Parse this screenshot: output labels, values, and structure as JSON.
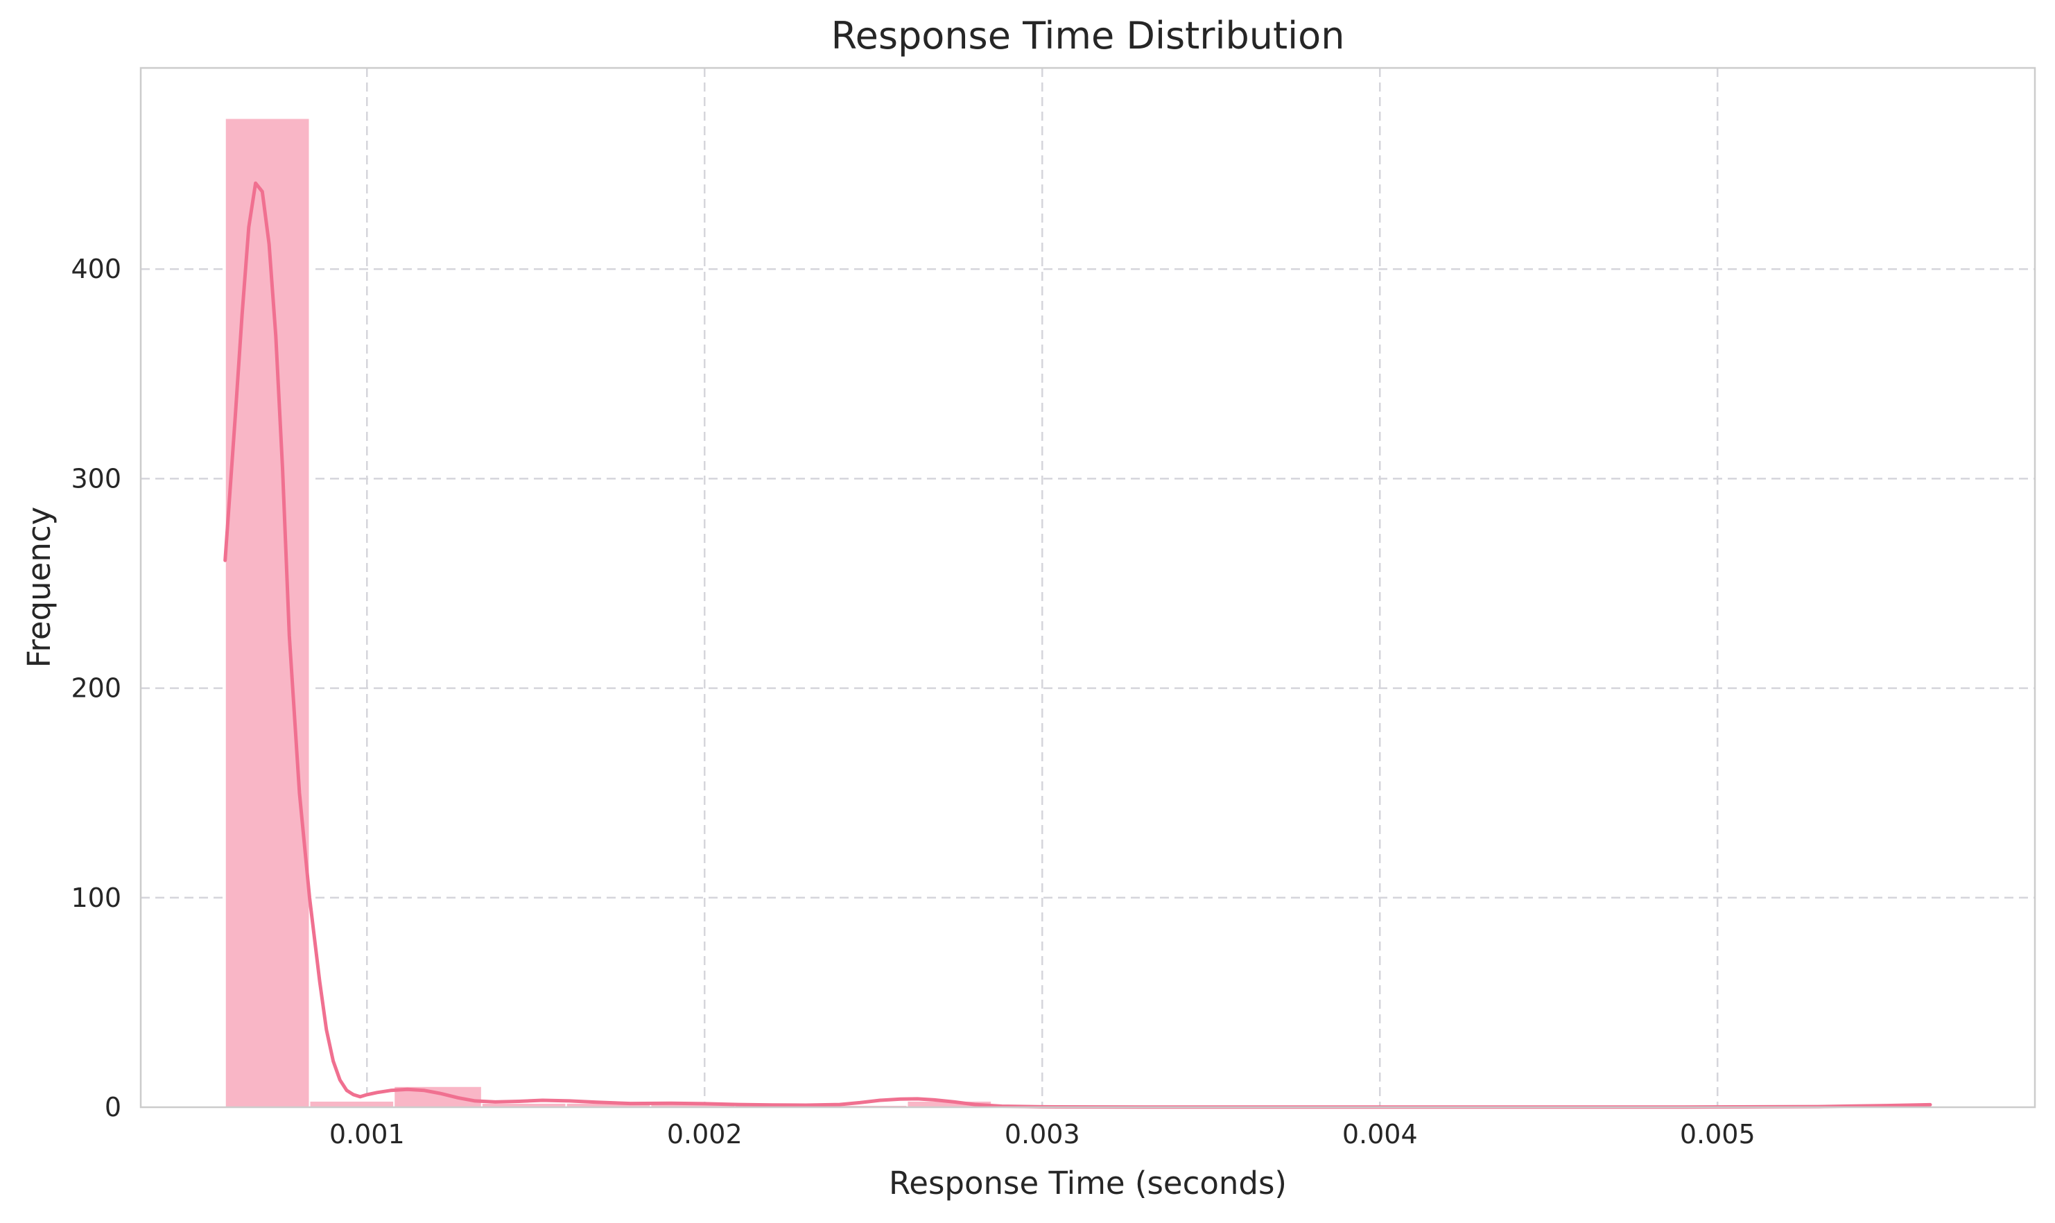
{
  "chart_data": {
    "type": "bar",
    "title": "Response Time Distribution",
    "xlabel": "Response Time (seconds)",
    "ylabel": "Frequency",
    "xlim": [
      0.00033,
      0.00594
    ],
    "ylim": [
      0,
      496
    ],
    "xticks": [
      0.001,
      0.002,
      0.003,
      0.004,
      0.005
    ],
    "xtick_labels": [
      "0.001",
      "0.002",
      "0.003",
      "0.004",
      "0.005"
    ],
    "yticks": [
      0,
      100,
      200,
      300,
      400
    ],
    "ytick_labels": [
      "0",
      "100",
      "200",
      "300",
      "400"
    ],
    "grid": true,
    "colors": {
      "bars": "#f9b6c6",
      "kde": "#f07090",
      "grid": "#d5d5db",
      "frame": "#cccccc"
    },
    "bins": [
      {
        "x0": 0.00058,
        "x1": 0.00083,
        "count": 472
      },
      {
        "x0": 0.00083,
        "x1": 0.00108,
        "count": 3
      },
      {
        "x0": 0.00108,
        "x1": 0.00134,
        "count": 10
      },
      {
        "x0": 0.00134,
        "x1": 0.00159,
        "count": 2
      },
      {
        "x0": 0.00159,
        "x1": 0.00184,
        "count": 2
      },
      {
        "x0": 0.00184,
        "x1": 0.00209,
        "count": 2
      },
      {
        "x0": 0.00209,
        "x1": 0.00235,
        "count": 1
      },
      {
        "x0": 0.00235,
        "x1": 0.0026,
        "count": 1
      },
      {
        "x0": 0.0026,
        "x1": 0.00285,
        "count": 3
      },
      {
        "x0": 0.00285,
        "x1": 0.0031,
        "count": 0
      },
      {
        "x0": 0.0031,
        "x1": 0.00336,
        "count": 0
      },
      {
        "x0": 0.00336,
        "x1": 0.00361,
        "count": 0
      },
      {
        "x0": 0.00361,
        "x1": 0.00386,
        "count": 0
      },
      {
        "x0": 0.00386,
        "x1": 0.00411,
        "count": 0
      },
      {
        "x0": 0.00411,
        "x1": 0.00437,
        "count": 0
      },
      {
        "x0": 0.00437,
        "x1": 0.00462,
        "count": 0
      },
      {
        "x0": 0.00462,
        "x1": 0.00487,
        "count": 0
      },
      {
        "x0": 0.00487,
        "x1": 0.00512,
        "count": 0
      },
      {
        "x0": 0.00512,
        "x1": 0.00538,
        "count": 0
      },
      {
        "x0": 0.00538,
        "x1": 0.00563,
        "count": 1
      }
    ],
    "kde": {
      "x": [
        0.00058,
        0.00061,
        0.00063,
        0.00065,
        0.00067,
        0.00069,
        0.00071,
        0.00073,
        0.00075,
        0.00077,
        0.0008,
        0.00083,
        0.00086,
        0.00088,
        0.0009,
        0.00092,
        0.00094,
        0.00096,
        0.00098,
        0.001,
        0.00103,
        0.00107,
        0.00112,
        0.00117,
        0.00122,
        0.00127,
        0.00132,
        0.00138,
        0.00145,
        0.00152,
        0.0016,
        0.00168,
        0.00178,
        0.0019,
        0.002,
        0.0021,
        0.0022,
        0.0023,
        0.0024,
        0.00246,
        0.00252,
        0.00258,
        0.00263,
        0.00268,
        0.00274,
        0.0028,
        0.00288,
        0.003,
        0.0033,
        0.0037,
        0.0041,
        0.0045,
        0.0049,
        0.0053,
        0.0055,
        0.00563
      ],
      "y": [
        261,
        330,
        378,
        420,
        441,
        437,
        412,
        368,
        305,
        225,
        150,
        100,
        60,
        37,
        22,
        13,
        8,
        6,
        5,
        6,
        7,
        8,
        8.5,
        8,
        6.5,
        4.5,
        3,
        2.5,
        2.8,
        3.3,
        3,
        2.4,
        1.8,
        1.9,
        1.7,
        1.3,
        1.1,
        1.0,
        1.3,
        2.2,
        3.3,
        3.9,
        4.0,
        3.5,
        2.5,
        1.3,
        0.5,
        0.2,
        0.1,
        0.1,
        0.1,
        0.1,
        0.1,
        0.3,
        0.8,
        1.2
      ]
    }
  }
}
